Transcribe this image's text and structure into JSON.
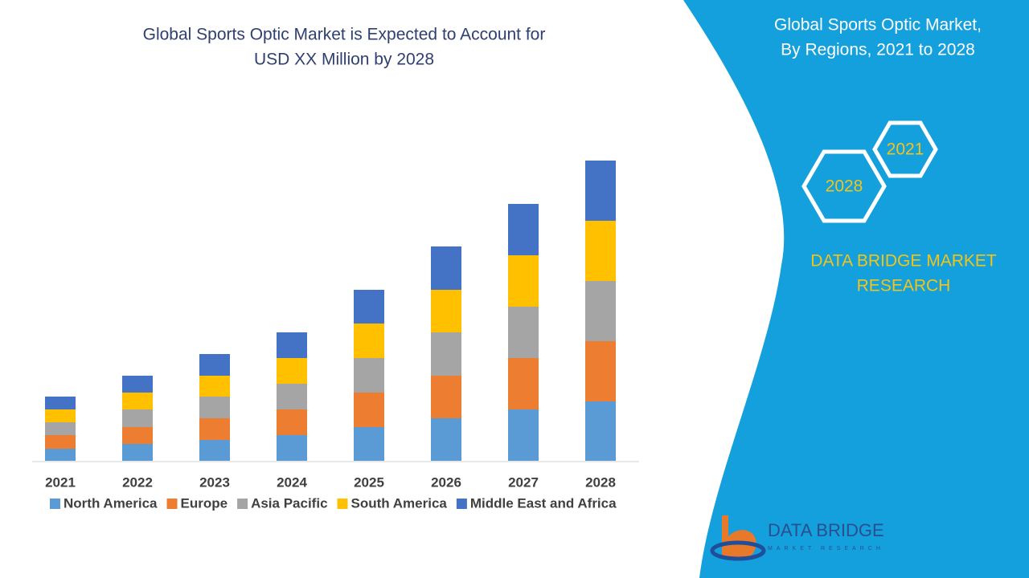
{
  "chart_data": {
    "type": "stacked_bar",
    "title": "Global Sports Optic Market is Expected to Account for",
    "subtitle": "USD XX Million by 2028",
    "categories": [
      "2021",
      "2022",
      "2023",
      "2024",
      "2025",
      "2026",
      "2027",
      "2028"
    ],
    "series": [
      {
        "name": "North America",
        "color": "#5b9bd5",
        "values": [
          15,
          21,
          26,
          32,
          42,
          53,
          64,
          74
        ]
      },
      {
        "name": "Europe",
        "color": "#ed7d31",
        "values": [
          17,
          21,
          27,
          32,
          43,
          53,
          64,
          75
        ]
      },
      {
        "name": "Asia Pacific",
        "color": "#a5a5a5",
        "values": [
          16,
          22,
          27,
          32,
          43,
          54,
          64,
          75
        ]
      },
      {
        "name": "South America",
        "color": "#ffc000",
        "values": [
          16,
          21,
          26,
          32,
          43,
          53,
          64,
          75
        ]
      },
      {
        "name": "Middle East and Africa",
        "color": "#4472c4",
        "values": [
          16,
          21,
          27,
          32,
          42,
          54,
          64,
          75
        ]
      }
    ],
    "ylim": [
      0,
      400
    ]
  },
  "side_panel": {
    "title_line1": "Global Sports Optic Market,",
    "title_line2": "By Regions, 2021 to 2028",
    "hex_labels": [
      "2021",
      "2028"
    ],
    "brand_line1": "DATA BRIDGE MARKET",
    "brand_line2": "RESEARCH",
    "logo_name": "DATA BRIDGE",
    "logo_tagline": "MARKET RESEARCH"
  }
}
